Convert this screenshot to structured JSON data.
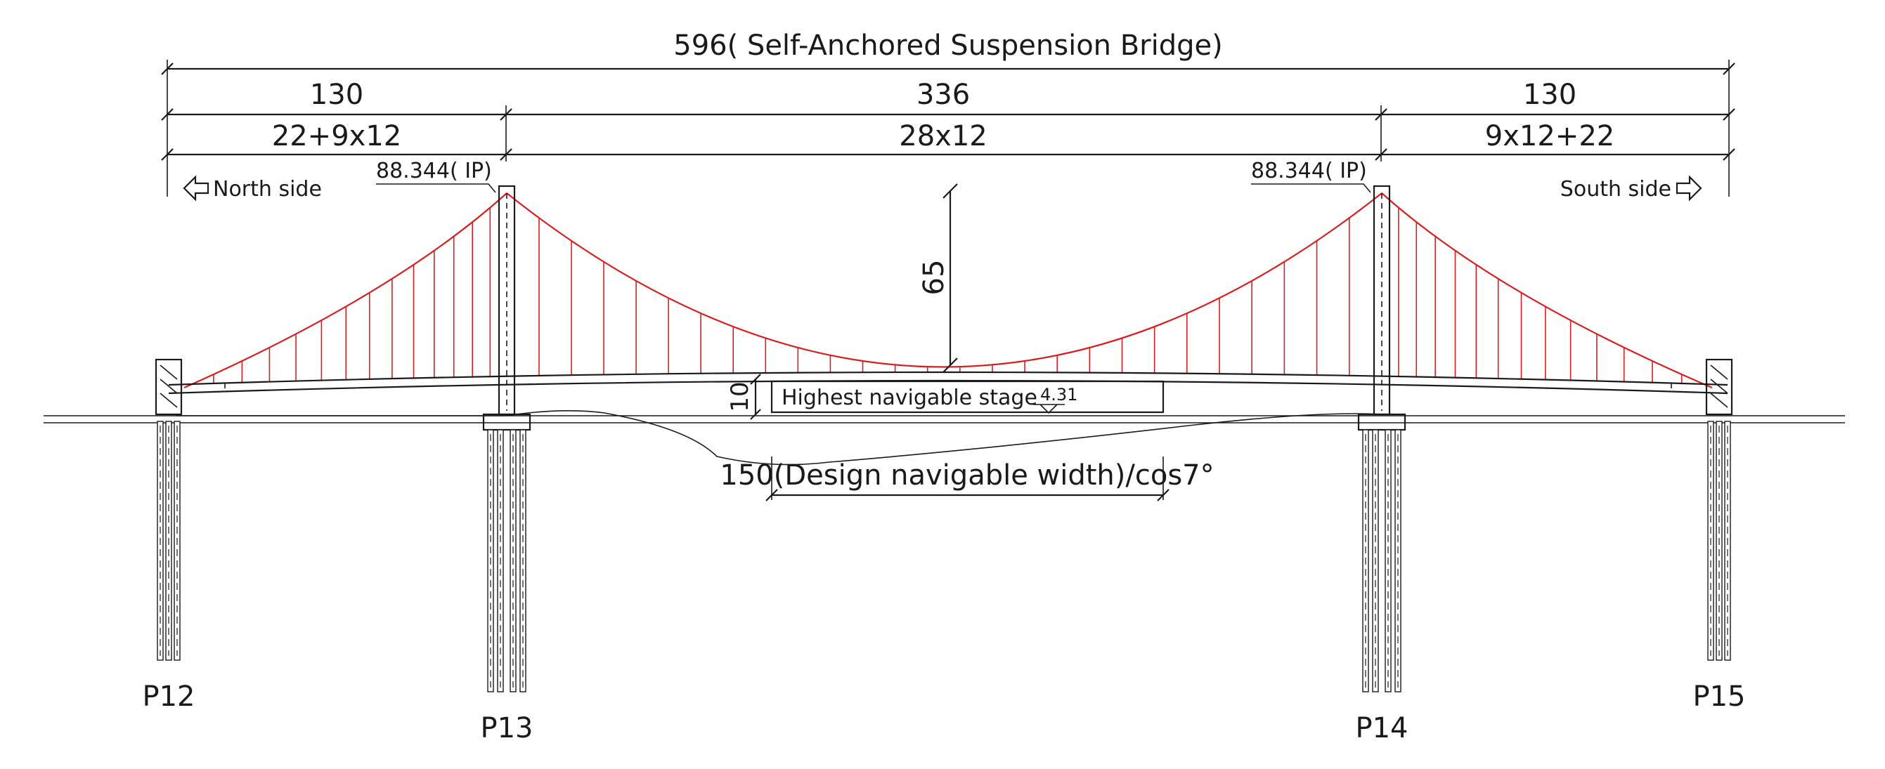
{
  "dimensions": {
    "total": "596( Self-Anchored Suspension Bridge)",
    "north_side_span": "130",
    "main_span": "336",
    "south_side_span": "130",
    "north_girder": "22+9x12",
    "main_girder": "28x12",
    "south_girder": "9x12+22",
    "sag": "65",
    "clearance": "10",
    "nav_width": "150(Design navigable width)/cos7°"
  },
  "labels": {
    "north_side": "North side",
    "south_side": "South side",
    "ip_left": "88.344( IP)",
    "ip_right": "88.344( IP)",
    "navigable_stage": "Highest navigable stage",
    "navigable_stage_elev": "4.31"
  },
  "piers": [
    "P12",
    "P13",
    "P14",
    "P15"
  ],
  "colors": {
    "line": "#1a1a1a",
    "cable": "#d62020"
  },
  "icons": {
    "north_arrow": "left-arrow-icon",
    "south_arrow": "right-arrow-icon"
  }
}
